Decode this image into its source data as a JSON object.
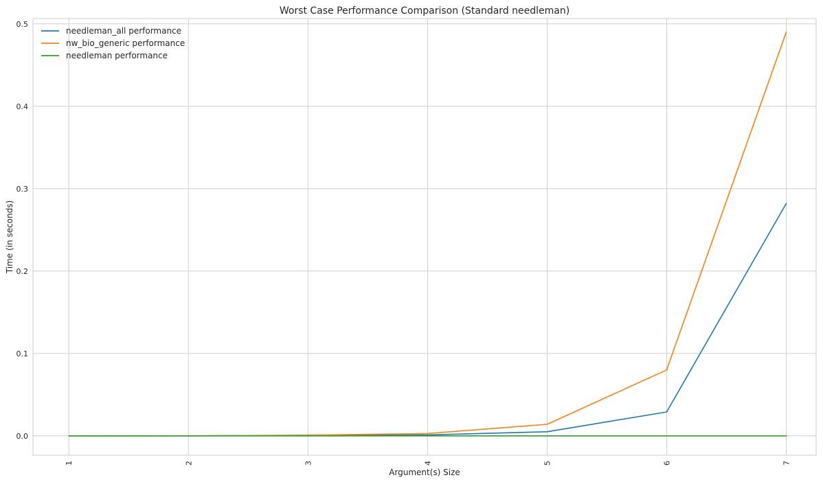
{
  "chart_data": {
    "type": "line",
    "title": "Worst Case Performance Comparison (Standard needleman)",
    "xlabel": "Argument(s) Size",
    "ylabel": "Time (in seconds)",
    "x": [
      1,
      2,
      3,
      4,
      5,
      6,
      7
    ],
    "x_tick_labels": [
      "1",
      "2",
      "3",
      "4",
      "5",
      "6",
      "7"
    ],
    "y_ticks": [
      0.0,
      0.1,
      0.2,
      0.3,
      0.4,
      0.5
    ],
    "y_tick_labels": [
      "0.0",
      "0.1",
      "0.2",
      "0.3",
      "0.4",
      "0.5"
    ],
    "xlim": [
      0.7,
      7.25
    ],
    "ylim": [
      -0.0235,
      0.5065
    ],
    "grid": true,
    "legend_location": "top-left",
    "series": [
      {
        "name": "needleman_all performance",
        "color": "#1f77b4",
        "values": [
          0.0,
          0.0,
          0.0003,
          0.0012,
          0.005,
          0.029,
          0.282
        ]
      },
      {
        "name": "nw_bio_generic performance",
        "color": "#ff7f0e",
        "values": [
          0.0,
          0.0001,
          0.0008,
          0.0028,
          0.014,
          0.08,
          0.49
        ]
      },
      {
        "name": "needleman performance",
        "color": "#2ca02c",
        "values": [
          0.0,
          0.0,
          0.0,
          0.0,
          0.0,
          0.0,
          0.0
        ]
      }
    ]
  }
}
